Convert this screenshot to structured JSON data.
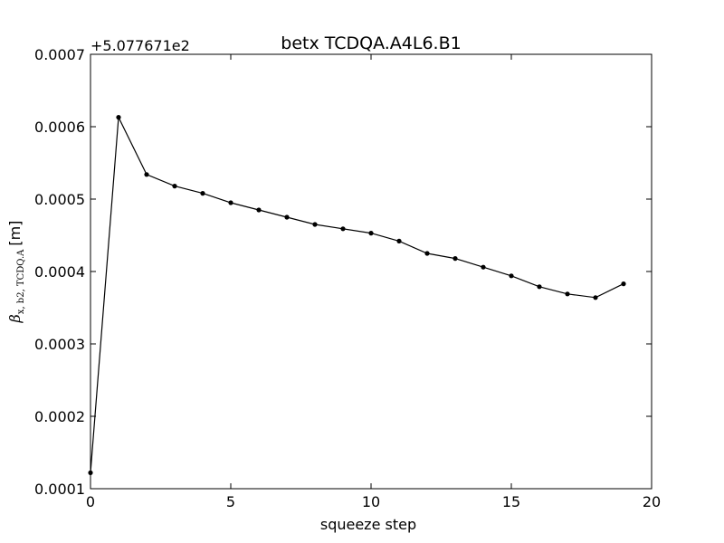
{
  "chart_data": {
    "type": "line",
    "title": "betx TCDQA.A4L6.B1",
    "xlabel": "squeeze step",
    "ylabel": {
      "symbol": "β",
      "subscript": "x, b2, TCDQ.A",
      "unit": "[m]"
    },
    "y_offset_label": "+5.077671e2",
    "xlim": [
      0,
      20
    ],
    "ylim": [
      0.0001,
      0.0007
    ],
    "x_ticks": [
      0,
      5,
      10,
      15,
      20
    ],
    "x_tick_labels": [
      "0",
      "5",
      "10",
      "15",
      "20"
    ],
    "y_ticks": [
      0.0001,
      0.0002,
      0.0003,
      0.0004,
      0.0005,
      0.0006,
      0.0007
    ],
    "y_tick_labels": [
      "0.0001",
      "0.0002",
      "0.0003",
      "0.0004",
      "0.0005",
      "0.0006",
      "0.0007"
    ],
    "grid": false,
    "series": [
      {
        "color": "#000000",
        "marker": "dot",
        "x": [
          0,
          1,
          2,
          3,
          4,
          5,
          6,
          7,
          8,
          9,
          10,
          11,
          12,
          13,
          14,
          15,
          16,
          17,
          18,
          19
        ],
        "y": [
          0.000122,
          0.000613,
          0.000534,
          0.000518,
          0.000508,
          0.000495,
          0.000485,
          0.000475,
          0.000465,
          0.000459,
          0.000453,
          0.000442,
          0.000425,
          0.000418,
          0.000406,
          0.000394,
          0.000379,
          0.000369,
          0.000364,
          0.000383
        ]
      }
    ]
  }
}
